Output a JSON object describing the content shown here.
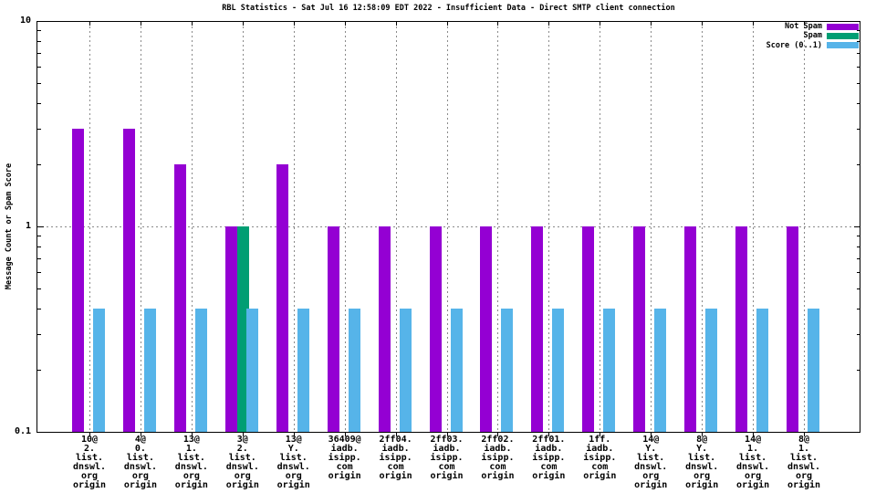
{
  "chart_data": {
    "type": "bar",
    "title": "RBL Statistics - Sat Jul 16 12:58:09 EDT 2022 - Insufficient Data - Direct SMTP client connection",
    "ylabel": "Message Count or Spam Score",
    "xlabel": "",
    "y_scale": "log",
    "ylim": [
      0.1,
      10
    ],
    "yticks": [
      {
        "label": "10",
        "value": 10
      },
      {
        "label": "1",
        "value": 1
      },
      {
        "label": "0.1",
        "value": 0.1
      }
    ],
    "grid": true,
    "grid_color": "#8a8a8a",
    "border_color": "#000000",
    "background_color": "#ffffff",
    "legend_position": "top-right-inside",
    "legend": [
      {
        "label": "Not Spam",
        "color": "#9400d3"
      },
      {
        "label": "Spam",
        "color": "#009e73"
      },
      {
        "label": "Score (0..1)",
        "color": "#56b4e9"
      }
    ],
    "categories": [
      [
        "10@",
        "2.",
        "list.",
        "dnswl.",
        "org",
        "origin"
      ],
      [
        "4@",
        "0.",
        "list.",
        "dnswl.",
        "org",
        "origin"
      ],
      [
        "13@",
        "1.",
        "list.",
        "dnswl.",
        "org",
        "origin"
      ],
      [
        "3@",
        "2.",
        "list.",
        "dnswl.",
        "org",
        "origin"
      ],
      [
        "13@",
        "Y.",
        "list.",
        "dnswl.",
        "org",
        "origin"
      ],
      [
        "36409@",
        "iadb.",
        "isipp.",
        "com",
        "origin"
      ],
      [
        "2ff04.",
        "iadb.",
        "isipp.",
        "com",
        "origin"
      ],
      [
        "2ff03.",
        "iadb.",
        "isipp.",
        "com",
        "origin"
      ],
      [
        "2ff02.",
        "iadb.",
        "isipp.",
        "com",
        "origin"
      ],
      [
        "2ff01.",
        "iadb.",
        "isipp.",
        "com",
        "origin"
      ],
      [
        "1ff.",
        "iadb.",
        "isipp.",
        "com",
        "origin"
      ],
      [
        "14@",
        "Y.",
        "list.",
        "dnswl.",
        "org",
        "origin"
      ],
      [
        "8@",
        "Y.",
        "list.",
        "dnswl.",
        "org",
        "origin"
      ],
      [
        "14@",
        "1.",
        "list.",
        "dnswl.",
        "org",
        "origin"
      ],
      [
        "8@",
        "1.",
        "list.",
        "dnswl.",
        "org",
        "origin"
      ]
    ],
    "series": [
      {
        "name": "Not Spam",
        "color": "#9400d3",
        "values": [
          3,
          3,
          2,
          1,
          2,
          1,
          1,
          1,
          1,
          1,
          1,
          1,
          1,
          1,
          1
        ]
      },
      {
        "name": "Spam",
        "color": "#009e73",
        "values": [
          0,
          0,
          0,
          1,
          0,
          0,
          0,
          0,
          0,
          0,
          0,
          0,
          0,
          0,
          0
        ]
      },
      {
        "name": "Score (0..1)",
        "color": "#56b4e9",
        "values": [
          0.4,
          0.4,
          0.4,
          0.4,
          0.4,
          0.4,
          0.4,
          0.4,
          0.4,
          0.4,
          0.4,
          0.4,
          0.4,
          0.4,
          0.4
        ]
      }
    ]
  }
}
